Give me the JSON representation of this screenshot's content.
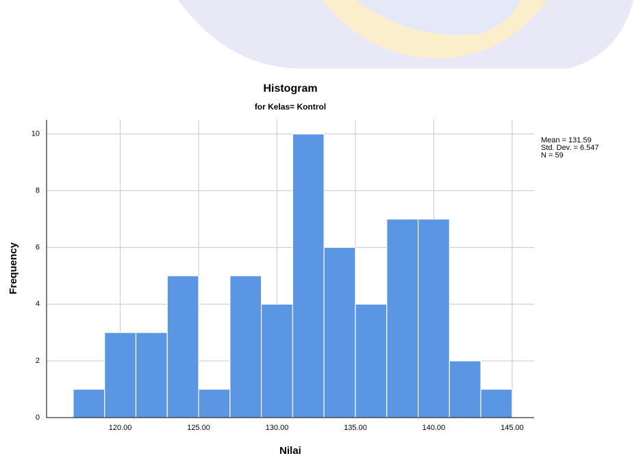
{
  "chart_data": {
    "type": "histogram",
    "title": "Histogram",
    "subtitle": "for Kelas= Kontrol",
    "x_label": "Nilai",
    "y_label": "Frequency",
    "bins": [
      117,
      119,
      121,
      123,
      125,
      127,
      129,
      131,
      133,
      135,
      137,
      139,
      141,
      143,
      145
    ],
    "values": [
      1,
      3,
      3,
      5,
      1,
      5,
      4,
      10,
      6,
      4,
      7,
      7,
      2,
      1
    ],
    "color": "#5a96e3",
    "xlim": [
      115.3,
      146.4
    ],
    "xticks": [
      {
        "value": 120,
        "label": "120.00"
      },
      {
        "value": 125,
        "label": "125.00"
      },
      {
        "value": 130,
        "label": "130.00"
      },
      {
        "value": 135,
        "label": "135.00"
      },
      {
        "value": 140,
        "label": "140.00"
      },
      {
        "value": 145,
        "label": "145.00"
      }
    ],
    "ylim": [
      0,
      10.5
    ],
    "yticks": [
      0,
      2,
      4,
      6,
      8,
      10
    ],
    "grid": true,
    "annotations": [
      "Mean = 131.59",
      "Std. Dev. = 6.547",
      "N = 59"
    ]
  }
}
